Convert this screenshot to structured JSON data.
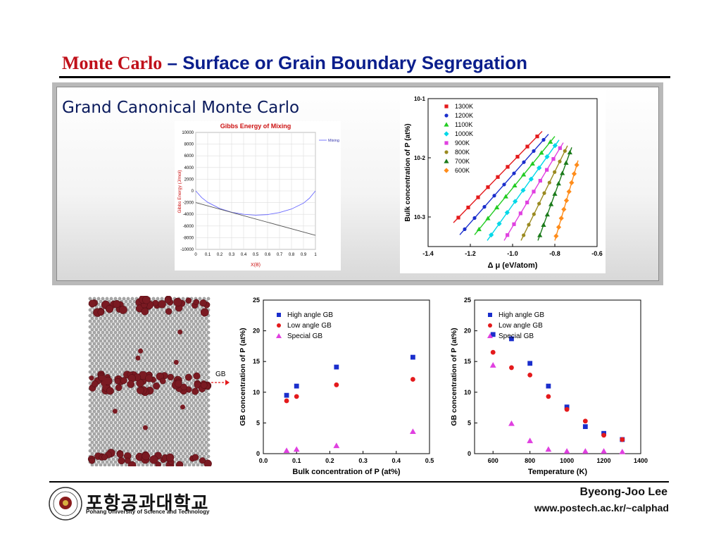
{
  "header": {
    "title_part1": "Monte Carlo",
    "title_sep": "–",
    "title_part2": "Surface or Grain Boundary Segregation"
  },
  "panel": {
    "heading": "Grand Canonical Monte Carlo"
  },
  "sim_image": {
    "gb_label": "GB"
  },
  "footer": {
    "author": "Byeong-Joo Lee",
    "url": "www.postech.ac.kr/~calphad",
    "logo_korean": "포항공과대학교",
    "logo_english": "Pohang University of Science and Technology"
  },
  "chart_data": [
    {
      "type": "line",
      "title": "Gibbs Energy of Mixing",
      "xlabel": "X(B)",
      "ylabel": "Gibbs Energy (J/mol)",
      "xlim": [
        0,
        1
      ],
      "ylim": [
        -10000,
        10000
      ],
      "xticks": [
        0,
        0.1,
        0.2,
        0.3,
        0.4,
        0.5,
        0.6,
        0.7,
        0.8,
        0.9,
        1
      ],
      "yticks": [
        10000,
        8000,
        6000,
        4000,
        2000,
        0,
        -2000,
        -4000,
        -6000,
        -8000,
        -10000
      ],
      "legend": [
        "Mixing"
      ],
      "grid": true,
      "series": [
        {
          "name": "Mixing",
          "color": "#6a6aff",
          "x": [
            0,
            0.05,
            0.1,
            0.2,
            0.3,
            0.4,
            0.5,
            0.6,
            0.7,
            0.8,
            0.9,
            0.95,
            1
          ],
          "y": [
            0,
            -1150,
            -1950,
            -3000,
            -3650,
            -4000,
            -4150,
            -4050,
            -3700,
            -3100,
            -2100,
            -1250,
            0
          ]
        },
        {
          "color": "#555555",
          "x": [
            0,
            1
          ],
          "y": [
            -2000,
            -7600
          ]
        }
      ]
    },
    {
      "type": "scatter",
      "xlabel": "Δ  μ  (eV/atom)",
      "ylabel": "Bulk concentration of P (at%)",
      "xlim": [
        -1.4,
        -0.6
      ],
      "ylim_log10": [
        -3.5,
        -1
      ],
      "log_y": true,
      "xticks": [
        -1.4,
        -1.2,
        -1.0,
        -0.8,
        -0.6
      ],
      "xtick_labels": [
        "-1.4",
        "-1.2",
        "-1.0",
        "-0.8",
        "-0.6"
      ],
      "yticks": [
        -3,
        -2,
        -1
      ],
      "ytick_labels": [
        "10-3",
        "10-2",
        "10-1"
      ],
      "series": [
        {
          "name": "1300K",
          "color": "#e41a1c",
          "marker": "square",
          "x": [
            -1.28,
            -0.86
          ],
          "y": [
            0.0008,
            0.028
          ]
        },
        {
          "name": "1200K",
          "color": "#1a2ecc",
          "marker": "circle",
          "x": [
            -1.25,
            -0.83
          ],
          "y": [
            0.0005,
            0.025
          ]
        },
        {
          "name": "1100K",
          "color": "#22cc22",
          "marker": "triangle",
          "x": [
            -1.18,
            -0.8
          ],
          "y": [
            0.0005,
            0.023
          ]
        },
        {
          "name": "1000K",
          "color": "#00d8e8",
          "marker": "diamond",
          "x": [
            -1.12,
            -0.78
          ],
          "y": [
            0.0004,
            0.02
          ]
        },
        {
          "name": "900K",
          "color": "#e040e0",
          "marker": "square",
          "x": [
            -1.04,
            -0.76
          ],
          "y": [
            0.0004,
            0.018
          ]
        },
        {
          "name": "800K",
          "color": "#9a8a20",
          "marker": "circle",
          "x": [
            -0.96,
            -0.74
          ],
          "y": [
            0.0004,
            0.016
          ]
        },
        {
          "name": "700K",
          "color": "#1a7a1a",
          "marker": "triangle",
          "x": [
            -0.88,
            -0.72
          ],
          "y": [
            0.0004,
            0.015
          ]
        },
        {
          "name": "600K",
          "color": "#ff8c1a",
          "marker": "diamond",
          "x": [
            -0.8,
            -0.69
          ],
          "y": [
            0.0004,
            0.009
          ]
        }
      ]
    },
    {
      "type": "scatter",
      "xlabel": "Bulk concentration of P (at%)",
      "ylabel": "GB concentration of P (at%)",
      "xlim": [
        0,
        0.5
      ],
      "ylim": [
        0,
        25
      ],
      "xticks": [
        0,
        0.1,
        0.2,
        0.3,
        0.4,
        0.5
      ],
      "xtick_labels": [
        "0.0",
        "0.1",
        "0.2",
        "0.3",
        "0.4",
        "0.5"
      ],
      "yticks": [
        0,
        5,
        10,
        15,
        20,
        25
      ],
      "ytick_labels": [
        "0",
        "5",
        "10",
        "15",
        "20",
        "25"
      ],
      "series": [
        {
          "name": "High angle GB",
          "color": "#1a2ecc",
          "marker": "square",
          "x": [
            0.07,
            0.1,
            0.22,
            0.45
          ],
          "y": [
            9.5,
            11,
            14.1,
            15.7
          ]
        },
        {
          "name": "Low angle GB",
          "color": "#e41a1c",
          "marker": "circle",
          "x": [
            0.07,
            0.1,
            0.22,
            0.45
          ],
          "y": [
            8.6,
            9.3,
            11.2,
            12.1
          ]
        },
        {
          "name": "Special GB",
          "color": "#e040e0",
          "marker": "triangle",
          "x": [
            0.07,
            0.1,
            0.22,
            0.45
          ],
          "y": [
            0.5,
            0.7,
            1.3,
            3.6
          ]
        }
      ]
    },
    {
      "type": "scatter",
      "xlabel": "Temperature (K)",
      "ylabel": "GB concentration of P (at%)",
      "xlim": [
        500,
        1400
      ],
      "ylim": [
        0,
        25
      ],
      "xticks": [
        600,
        800,
        1000,
        1200,
        1400
      ],
      "xtick_labels": [
        "600",
        "800",
        "1000",
        "1200",
        "1400"
      ],
      "yticks": [
        0,
        5,
        10,
        15,
        20,
        25
      ],
      "ytick_labels": [
        "0",
        "5",
        "10",
        "15",
        "20",
        "25"
      ],
      "series": [
        {
          "name": "High angle GB",
          "color": "#1a2ecc",
          "marker": "square",
          "x": [
            600,
            700,
            800,
            900,
            1000,
            1100,
            1200,
            1300
          ],
          "y": [
            19.4,
            18.7,
            14.7,
            11,
            7.6,
            4.4,
            3.3,
            2.3
          ]
        },
        {
          "name": "Low angle GB",
          "color": "#e41a1c",
          "marker": "circle",
          "x": [
            600,
            700,
            800,
            900,
            1000,
            1100,
            1200,
            1300
          ],
          "y": [
            16.5,
            14,
            12.8,
            9.3,
            7.2,
            5.3,
            3.0,
            2.3
          ]
        },
        {
          "name": "Special GB",
          "color": "#e040e0",
          "marker": "triangle",
          "x": [
            600,
            700,
            800,
            900,
            1000,
            1100,
            1200,
            1300
          ],
          "y": [
            14.4,
            4.9,
            2.1,
            0.7,
            0.4,
            0.4,
            0.4,
            0.3
          ]
        }
      ]
    }
  ]
}
